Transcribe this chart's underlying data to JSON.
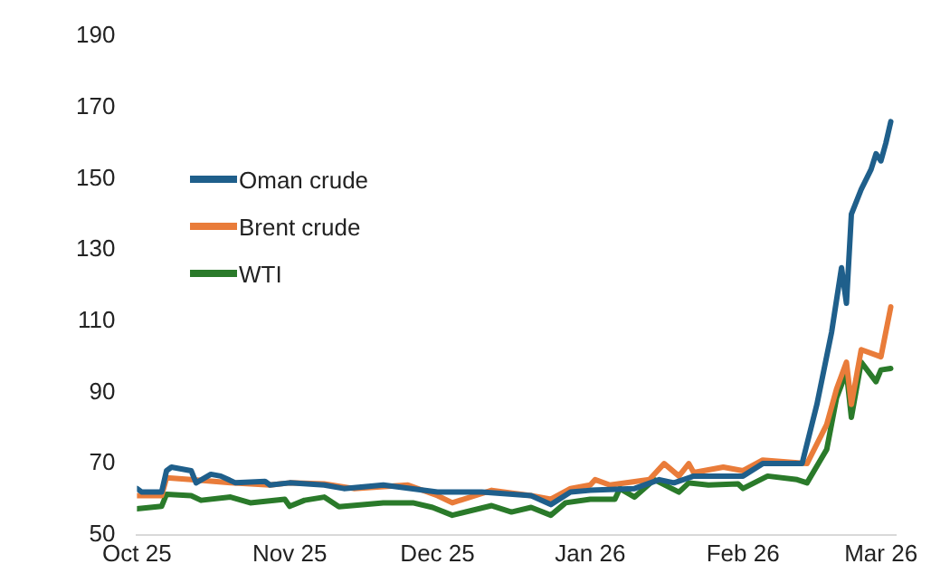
{
  "chart_data": {
    "type": "line",
    "xlim": [
      "2025-10-01",
      "2026-03-04"
    ],
    "ylim": [
      50,
      190
    ],
    "yticks": [
      50,
      70,
      90,
      110,
      130,
      150,
      170,
      190
    ],
    "xticks": [
      {
        "value": "2025-10-01",
        "label": "Oct 25"
      },
      {
        "value": "2025-11-01",
        "label": "Nov 25"
      },
      {
        "value": "2025-12-01",
        "label": "Dec 25"
      },
      {
        "value": "2026-01-01",
        "label": "Jan 26"
      },
      {
        "value": "2026-02-01",
        "label": "Feb 26"
      },
      {
        "value": "2026-03-01",
        "label": "Mar 26"
      }
    ],
    "grid": false,
    "legend": "top left",
    "marker": "none",
    "line_style": "solid",
    "series": [
      {
        "name": "Oman crude",
        "color": "#1f5f8b",
        "x": [
          "2025-10-01",
          "2025-10-02",
          "2025-10-06",
          "2025-10-07",
          "2025-10-08",
          "2025-10-12",
          "2025-10-13",
          "2025-10-16",
          "2025-10-18",
          "2025-10-21",
          "2025-10-27",
          "2025-10-28",
          "2025-11-01",
          "2025-11-08",
          "2025-11-12",
          "2025-11-20",
          "2025-12-01",
          "2025-12-10",
          "2025-12-20",
          "2025-12-24",
          "2025-12-28",
          "2026-01-01",
          "2026-01-10",
          "2026-01-15",
          "2026-01-18",
          "2026-01-22",
          "2026-02-01",
          "2026-02-05",
          "2026-02-13",
          "2026-02-16",
          "2026-02-19",
          "2026-02-21",
          "2026-02-22",
          "2026-02-23",
          "2026-02-25",
          "2026-02-27",
          "2026-02-28",
          "2026-03-01",
          "2026-03-02",
          "2026-03-03"
        ],
        "values": [
          63,
          62,
          62,
          68,
          69,
          68,
          64.6,
          67,
          66.5,
          64.6,
          65,
          64,
          64.6,
          64,
          63,
          64,
          62,
          62,
          61,
          58.5,
          62,
          62.5,
          63,
          65.5,
          64.6,
          66.5,
          66.5,
          70,
          70,
          86.6,
          107,
          125,
          115,
          140,
          147,
          152.6,
          157,
          155,
          160,
          166
        ]
      },
      {
        "name": "Brent crude",
        "color": "#e97c3a",
        "x": [
          "2025-10-01",
          "2025-10-06",
          "2025-10-07",
          "2025-10-12",
          "2025-10-20",
          "2025-10-28",
          "2025-11-01",
          "2025-11-08",
          "2025-11-14",
          "2025-11-25",
          "2025-12-01",
          "2025-12-04",
          "2025-12-12",
          "2025-12-20",
          "2025-12-24",
          "2025-12-28",
          "2026-01-01",
          "2026-01-02",
          "2026-01-05",
          "2026-01-13",
          "2026-01-16",
          "2026-01-19",
          "2026-01-21",
          "2026-01-22",
          "2026-01-28",
          "2026-02-01",
          "2026-02-05",
          "2026-02-14",
          "2026-02-18",
          "2026-02-20",
          "2026-02-22",
          "2026-02-23",
          "2026-02-25",
          "2026-03-01",
          "2026-03-03"
        ],
        "values": [
          61,
          61,
          66,
          65.5,
          64.6,
          64,
          64.6,
          64.3,
          63,
          64,
          61,
          59,
          62.5,
          61,
          60,
          63,
          64,
          65.5,
          64,
          65.5,
          70,
          66.5,
          70,
          67.5,
          69,
          68,
          71,
          70,
          81,
          91,
          98.5,
          86.6,
          102,
          100,
          114
        ]
      },
      {
        "name": "WTI",
        "color": "#2a7a2a",
        "x": [
          "2025-10-01",
          "2025-10-06",
          "2025-10-07",
          "2025-10-12",
          "2025-10-14",
          "2025-10-20",
          "2025-10-24",
          "2025-10-31",
          "2025-11-01",
          "2025-11-04",
          "2025-11-08",
          "2025-11-11",
          "2025-11-20",
          "2025-11-26",
          "2025-11-30",
          "2025-12-04",
          "2025-12-12",
          "2025-12-16",
          "2025-12-20",
          "2025-12-24",
          "2025-12-27",
          "2026-01-01",
          "2026-01-06",
          "2026-01-07",
          "2026-01-10",
          "2026-01-14",
          "2026-01-19",
          "2026-01-21",
          "2026-01-25",
          "2026-01-31",
          "2026-02-01",
          "2026-02-06",
          "2026-02-12",
          "2026-02-14",
          "2026-02-18",
          "2026-02-20",
          "2026-02-22",
          "2026-02-23",
          "2026-02-25",
          "2026-02-28",
          "2026-03-01",
          "2026-03-03"
        ],
        "values": [
          57.3,
          58,
          61.4,
          61,
          59.7,
          60.6,
          59,
          60,
          58,
          59.7,
          60.6,
          57.9,
          59,
          59,
          57.7,
          55.5,
          58.2,
          56.4,
          57.7,
          55.5,
          59,
          60,
          60,
          63,
          60.6,
          65.5,
          62,
          64.6,
          64,
          64.3,
          63,
          66.5,
          65.5,
          64.6,
          74,
          88.5,
          95.8,
          83,
          98.5,
          93,
          96.3,
          96.7
        ]
      }
    ]
  }
}
